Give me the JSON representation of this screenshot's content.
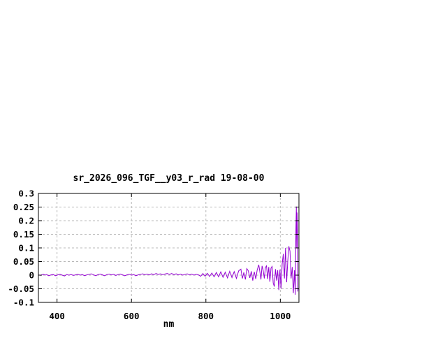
{
  "page": {
    "background": "#ffffff"
  },
  "chart_data": {
    "type": "line",
    "title": "sr_2026_096_TGF__y03_r_rad 19-08-00",
    "xlabel": "nm",
    "ylabel": "",
    "xlim": [
      350,
      1050
    ],
    "ylim": [
      -0.1,
      0.3
    ],
    "grid": true,
    "legend": "none",
    "line_color": "#9400d3",
    "grid_color": "#b9b9b9",
    "frame_color": "#000000",
    "x_ticks": [
      400,
      600,
      800,
      1000
    ],
    "x_tick_labels": [
      "400",
      "600",
      "800",
      "1000"
    ],
    "y_ticks": [
      -0.1,
      -0.05,
      0,
      0.05,
      0.1,
      0.15,
      0.2,
      0.25,
      0.3
    ],
    "y_tick_labels": [
      "-0.1",
      "-0.05",
      "0",
      "0.05",
      "0.1",
      "0.15",
      "0.2",
      "0.25",
      "0.3"
    ],
    "series": [
      {
        "name": "",
        "color": "#9400d3",
        "points": [
          [
            350,
            0.001
          ],
          [
            356,
            -0.001
          ],
          [
            360,
            0.002
          ],
          [
            364,
            0.003
          ],
          [
            368,
            0
          ],
          [
            372,
            0.002
          ],
          [
            378,
            -0.002
          ],
          [
            384,
            0.001
          ],
          [
            390,
            0.002
          ],
          [
            396,
            -0.002
          ],
          [
            402,
            0.001
          ],
          [
            408,
            0.003
          ],
          [
            414,
            0
          ],
          [
            420,
            -0.003
          ],
          [
            426,
            0.002
          ],
          [
            432,
            0
          ],
          [
            438,
            0.002
          ],
          [
            444,
            -0.001
          ],
          [
            450,
            0.001
          ],
          [
            456,
            0.003
          ],
          [
            462,
            0
          ],
          [
            468,
            0.002
          ],
          [
            474,
            -0.002
          ],
          [
            480,
            0.001
          ],
          [
            486,
            0.003
          ],
          [
            492,
            0.005
          ],
          [
            498,
            0.001
          ],
          [
            504,
            -0.002
          ],
          [
            510,
            0.002
          ],
          [
            516,
            0.004
          ],
          [
            522,
            0.001
          ],
          [
            528,
            -0.002
          ],
          [
            534,
            0.002
          ],
          [
            540,
            0.004
          ],
          [
            546,
            0.001
          ],
          [
            552,
            0.003
          ],
          [
            558,
            -0.001
          ],
          [
            564,
            0.002
          ],
          [
            570,
            0.004
          ],
          [
            576,
            0.001
          ],
          [
            582,
            -0.002
          ],
          [
            588,
            0.001
          ],
          [
            594,
            0.003
          ],
          [
            600,
            0
          ],
          [
            606,
            0.002
          ],
          [
            612,
            -0.002
          ],
          [
            618,
            0.001
          ],
          [
            624,
            0.003
          ],
          [
            630,
            0.005
          ],
          [
            636,
            0.002
          ],
          [
            642,
            0.004
          ],
          [
            648,
            0.001
          ],
          [
            654,
            0.005
          ],
          [
            660,
            0.002
          ],
          [
            666,
            0.006
          ],
          [
            672,
            0.003
          ],
          [
            678,
            0.005
          ],
          [
            684,
            0.002
          ],
          [
            690,
            0.004
          ],
          [
            696,
            0.006
          ],
          [
            702,
            0.003
          ],
          [
            708,
            0.006
          ],
          [
            714,
            0.002
          ],
          [
            720,
            0.005
          ],
          [
            726,
            0.001
          ],
          [
            732,
            0.004
          ],
          [
            738,
            0
          ],
          [
            744,
            0.003
          ],
          [
            750,
            0.005
          ],
          [
            756,
            0.001
          ],
          [
            762,
            0.004
          ],
          [
            768,
            0
          ],
          [
            774,
            0.003
          ],
          [
            780,
            0.001
          ],
          [
            786,
            -0.004
          ],
          [
            792,
            0.006
          ],
          [
            798,
            -0.004
          ],
          [
            804,
            0.007
          ],
          [
            810,
            -0.005
          ],
          [
            816,
            0.008
          ],
          [
            822,
            -0.006
          ],
          [
            828,
            0.01
          ],
          [
            834,
            -0.006
          ],
          [
            840,
            0.012
          ],
          [
            846,
            -0.008
          ],
          [
            852,
            0.011
          ],
          [
            858,
            -0.01
          ],
          [
            864,
            0.014
          ],
          [
            870,
            -0.009
          ],
          [
            876,
            0.013
          ],
          [
            882,
            -0.012
          ],
          [
            888,
            0.016
          ],
          [
            894,
            0.022
          ],
          [
            898,
            -0.012
          ],
          [
            902,
            0.01
          ],
          [
            906,
            -0.016
          ],
          [
            910,
            0.024
          ],
          [
            914,
            0.016
          ],
          [
            918,
            -0.01
          ],
          [
            922,
            0.014
          ],
          [
            926,
            -0.02
          ],
          [
            930,
            0.012
          ],
          [
            934,
            -0.014
          ],
          [
            938,
            0.02
          ],
          [
            942,
            0.038
          ],
          [
            945,
            0.012
          ],
          [
            948,
            -0.016
          ],
          [
            951,
            0.034
          ],
          [
            954,
            0.018
          ],
          [
            957,
            -0.012
          ],
          [
            960,
            0.028
          ],
          [
            963,
            0.034
          ],
          [
            966,
            -0.014
          ],
          [
            969,
            0.03
          ],
          [
            972,
            -0.024
          ],
          [
            975,
            0.026
          ],
          [
            978,
            0.032
          ],
          [
            981,
            -0.03
          ],
          [
            984,
            -0.042
          ],
          [
            987,
            0.022
          ],
          [
            990,
            -0.02
          ],
          [
            993,
            0.018
          ],
          [
            996,
            -0.055
          ],
          [
            999,
            0.02
          ],
          [
            1002,
            -0.05
          ],
          [
            1005,
            0.042
          ],
          [
            1008,
            0.078
          ],
          [
            1011,
            -0.012
          ],
          [
            1014,
            0.1
          ],
          [
            1017,
            -0.026
          ],
          [
            1020,
            0.052
          ],
          [
            1023,
            0.106
          ],
          [
            1026,
            0.088
          ],
          [
            1029,
            -0.012
          ],
          [
            1032,
            0.03
          ],
          [
            1035,
            -0.066
          ],
          [
            1038,
            0.018
          ],
          [
            1040,
            -0.072
          ],
          [
            1042,
            0.172
          ],
          [
            1043,
            0.252
          ],
          [
            1044,
            0.1
          ],
          [
            1045,
            0.23
          ],
          [
            1046,
            0.16
          ],
          [
            1047,
            -0.06
          ],
          [
            1048,
            -0.048
          ]
        ]
      }
    ]
  }
}
